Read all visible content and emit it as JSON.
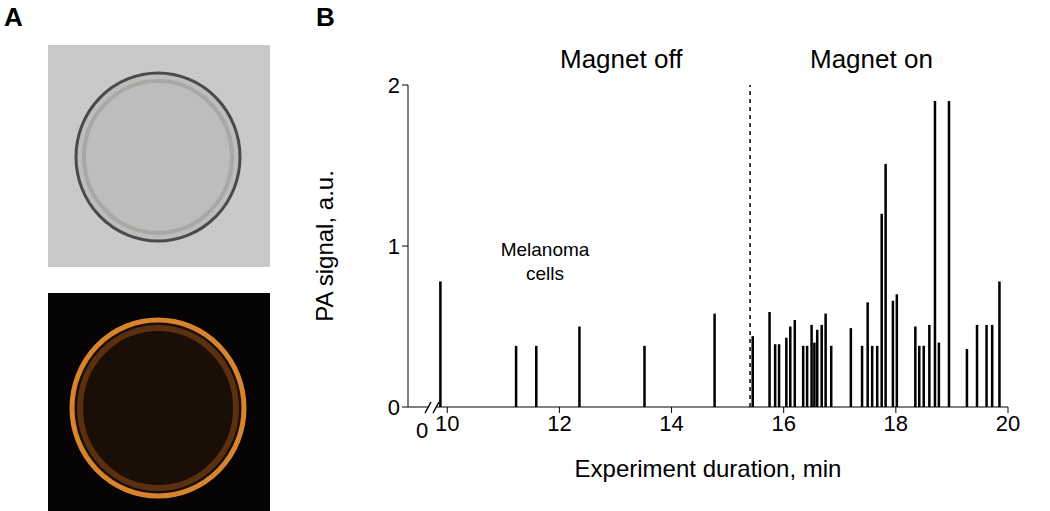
{
  "panel_labels": [
    "A",
    "B"
  ],
  "chart_data": {
    "type": "bar",
    "x_label": "Experiment duration, min",
    "y_label": "PA signal, a.u.",
    "annotations": [
      "Magnet off",
      "Magnet on",
      "Melanoma cells"
    ],
    "x_break_label": "0",
    "switch_x": 15.4,
    "x": [
      9.88,
      11.23,
      11.59,
      12.36,
      13.52,
      14.77,
      15.45,
      15.75,
      15.85,
      15.92,
      16.05,
      16.12,
      16.2,
      16.35,
      16.42,
      16.5,
      16.55,
      16.6,
      16.68,
      16.75,
      16.85,
      17.2,
      17.4,
      17.5,
      17.58,
      17.67,
      17.75,
      17.82,
      17.95,
      18.02,
      18.35,
      18.42,
      18.5,
      18.6,
      18.7,
      18.77,
      18.95,
      19.27,
      19.45,
      19.62,
      19.72,
      19.85
    ],
    "values": [
      0.78,
      0.38,
      0.38,
      0.5,
      0.38,
      0.58,
      0.44,
      0.59,
      0.39,
      0.39,
      0.43,
      0.5,
      0.54,
      0.38,
      0.38,
      0.51,
      0.4,
      0.48,
      0.51,
      0.58,
      0.38,
      0.49,
      0.38,
      0.65,
      0.38,
      0.38,
      1.2,
      1.51,
      0.66,
      0.7,
      0.5,
      0.38,
      0.38,
      0.51,
      1.9,
      0.4,
      1.9,
      0.36,
      0.51,
      0.51,
      0.51,
      0.78
    ],
    "color": "#000000",
    "xlim": [
      9.3,
      20
    ],
    "xticks": [
      10,
      12,
      14,
      16,
      18,
      20
    ],
    "ylim": [
      0,
      2
    ],
    "yticks": [
      0,
      1,
      2
    ],
    "grid": false
  }
}
